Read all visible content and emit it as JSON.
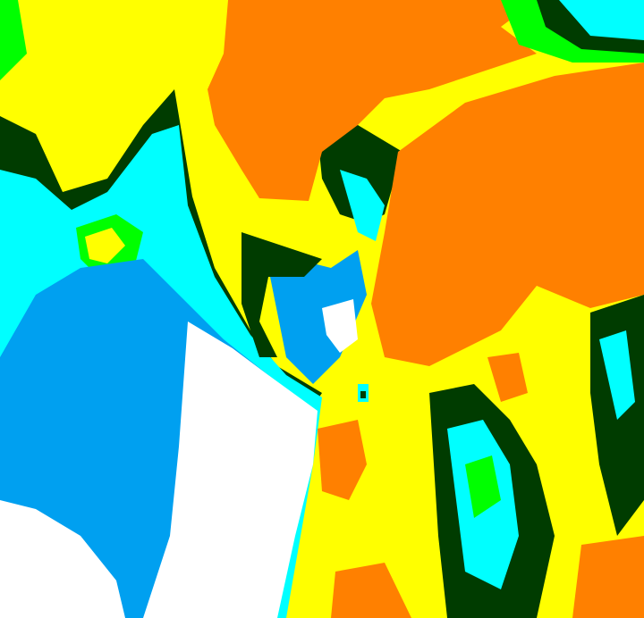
{
  "image": {
    "kind": "false-color classified satellite image",
    "palette": {
      "yellow": "#ffff00",
      "orange": "#ff8000",
      "green": "#00ff00",
      "dark_green": "#003c00",
      "cyan": "#00ffff",
      "blue": "#00a0f0",
      "white": "#ffffff"
    }
  }
}
